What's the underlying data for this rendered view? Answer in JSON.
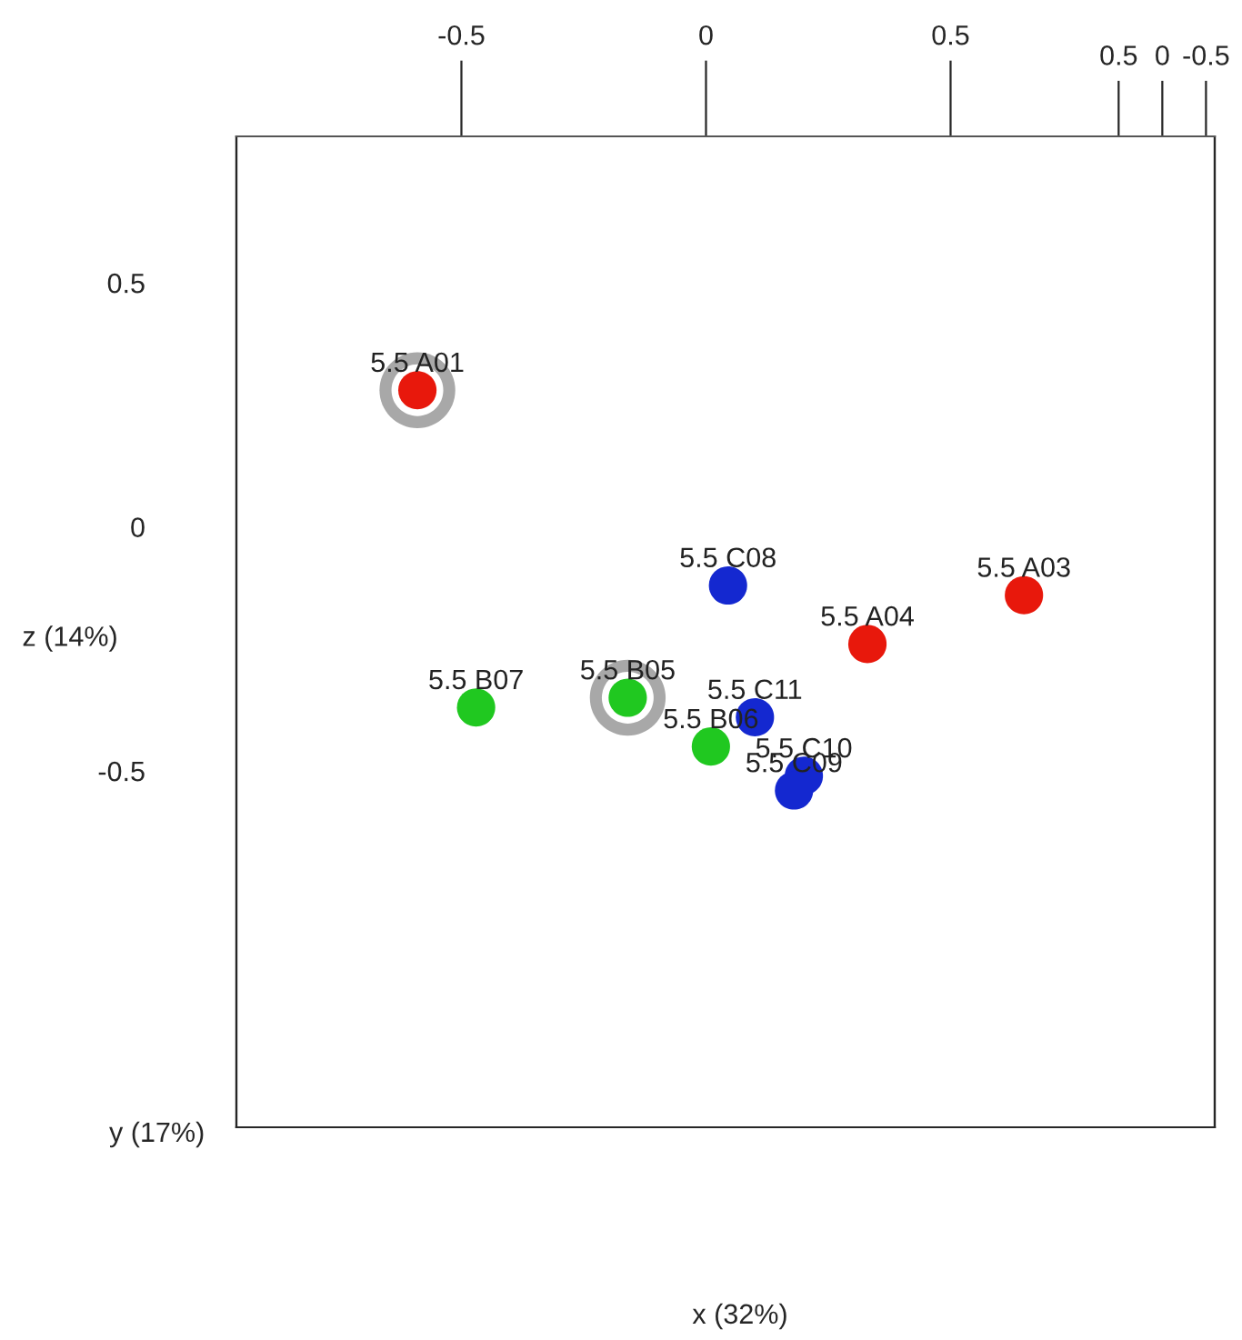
{
  "chart_data": {
    "type": "scatter",
    "ylabel": "z (14%)",
    "xlim": [
      -0.96,
      1.04
    ],
    "ylim": [
      -1.23,
      0.8
    ],
    "xticks": [
      -0.5,
      0,
      0.5
    ],
    "yticks": [
      0.5,
      0,
      -0.5
    ],
    "x2lim": [
      10.6,
      -0.6
    ],
    "x2ticks": [
      0.5,
      0,
      -0.5
    ],
    "series": [
      {
        "color": "#a8a8a8",
        "x": [
          -0.59,
          -0.16
        ],
        "values": [
          0.28,
          -0.35
        ]
      },
      {
        "color": "#e8180c",
        "x": [
          -0.59,
          0.65,
          0.33
        ],
        "values": [
          0.28,
          -0.14,
          -0.24
        ]
      },
      {
        "color": "#20c820",
        "x": [
          -0.47,
          -0.16,
          0.01
        ],
        "values": [
          -0.37,
          -0.35,
          -0.45
        ]
      },
      {
        "color": "#1428d0",
        "x": [
          0.045,
          0.1,
          0.2,
          0.18
        ],
        "values": [
          -0.12,
          -0.39,
          -0.51,
          -0.54
        ]
      }
    ],
    "annotations": [
      {
        "text": "5.5 A01",
        "x": -0.59,
        "y": 0.28
      },
      {
        "text": "5.5 A03",
        "x": 0.65,
        "y": -0.14
      },
      {
        "text": "5.5 A04",
        "x": 0.33,
        "y": -0.24
      },
      {
        "text": "5.5 B07",
        "x": -0.47,
        "y": -0.37
      },
      {
        "text": "5.5 B05",
        "x": -0.16,
        "y": -0.35
      },
      {
        "text": "5.5 B06",
        "x": 0.01,
        "y": -0.45
      },
      {
        "text": "5.5 C08",
        "x": 0.045,
        "y": -0.12
      },
      {
        "text": "5.5 C11",
        "x": 0.1,
        "y": -0.39
      },
      {
        "text": "5.5 C10",
        "x": 0.2,
        "y": -0.51
      },
      {
        "text": "5.5 C09",
        "x": 0.18,
        "y": -0.54
      },
      "y (17%)",
      "x (32%)"
    ]
  }
}
